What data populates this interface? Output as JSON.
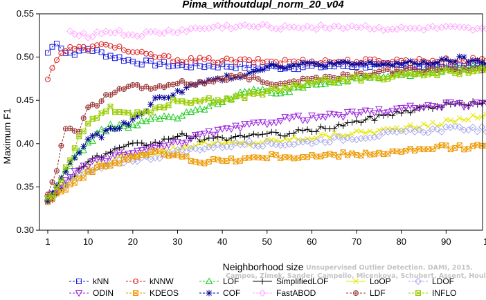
{
  "chart_data": {
    "type": "line",
    "title": "Pima_withoutdupl_norm_20_v04",
    "xlabel": "Neighborhood size",
    "ylabel": "Maximum F1",
    "xlim": [
      1,
      100
    ],
    "ylim": [
      0.3,
      0.55
    ],
    "x_ticks": [
      1,
      10,
      20,
      30,
      40,
      50,
      60,
      70,
      80,
      90,
      100
    ],
    "y_ticks": [
      "0.30",
      "0.35",
      "0.40",
      "0.45",
      "0.50",
      "0.55"
    ],
    "grid": false,
    "legend_position": "bottom",
    "watermark_lines": [
      "Unsupervised Outlier Detection. DAMI, 2015.",
      "Campos, Zimek, Sander, Campello, Micenkova, Schubert, Assent, Houle"
    ],
    "series": [
      {
        "name": "kNN",
        "color": "#2222dd",
        "marker": "square",
        "dash": "3,2",
        "anchors": [
          [
            1,
            0.505
          ],
          [
            3,
            0.518
          ],
          [
            5,
            0.505
          ],
          [
            8,
            0.505
          ],
          [
            10,
            0.51
          ],
          [
            14,
            0.503
          ],
          [
            20,
            0.495
          ],
          [
            30,
            0.49
          ],
          [
            40,
            0.49
          ],
          [
            50,
            0.488
          ],
          [
            60,
            0.489
          ],
          [
            70,
            0.49
          ],
          [
            80,
            0.49
          ],
          [
            90,
            0.49
          ],
          [
            100,
            0.49
          ]
        ]
      },
      {
        "name": "kNNW",
        "color": "#dd2222",
        "marker": "circle",
        "dash": "3,2",
        "anchors": [
          [
            1,
            0.473
          ],
          [
            2,
            0.49
          ],
          [
            4,
            0.505
          ],
          [
            6,
            0.51
          ],
          [
            10,
            0.51
          ],
          [
            15,
            0.515
          ],
          [
            20,
            0.505
          ],
          [
            30,
            0.497
          ],
          [
            40,
            0.496
          ],
          [
            50,
            0.495
          ],
          [
            60,
            0.495
          ],
          [
            70,
            0.495
          ],
          [
            80,
            0.496
          ],
          [
            90,
            0.496
          ],
          [
            100,
            0.497
          ]
        ]
      },
      {
        "name": "LOF",
        "color": "#22cc22",
        "marker": "triangle",
        "dash": "3,2",
        "anchors": [
          [
            1,
            0.335
          ],
          [
            3,
            0.345
          ],
          [
            5,
            0.37
          ],
          [
            8,
            0.39
          ],
          [
            12,
            0.41
          ],
          [
            15,
            0.42
          ],
          [
            20,
            0.42
          ],
          [
            25,
            0.43
          ],
          [
            30,
            0.43
          ],
          [
            35,
            0.44
          ],
          [
            40,
            0.45
          ],
          [
            45,
            0.46
          ],
          [
            50,
            0.46
          ],
          [
            55,
            0.46
          ],
          [
            60,
            0.47
          ],
          [
            70,
            0.475
          ],
          [
            80,
            0.48
          ],
          [
            90,
            0.485
          ],
          [
            100,
            0.49
          ]
        ]
      },
      {
        "name": "SimplifiedLOF",
        "color": "#000000",
        "marker": "plus",
        "dash": "",
        "anchors": [
          [
            1,
            0.335
          ],
          [
            3,
            0.34
          ],
          [
            6,
            0.36
          ],
          [
            10,
            0.38
          ],
          [
            15,
            0.39
          ],
          [
            20,
            0.398
          ],
          [
            25,
            0.4
          ],
          [
            30,
            0.41
          ],
          [
            35,
            0.405
          ],
          [
            40,
            0.405
          ],
          [
            45,
            0.41
          ],
          [
            50,
            0.41
          ],
          [
            55,
            0.412
          ],
          [
            60,
            0.415
          ],
          [
            70,
            0.425
          ],
          [
            80,
            0.437
          ],
          [
            90,
            0.445
          ],
          [
            100,
            0.448
          ]
        ]
      },
      {
        "name": "LoOP",
        "color": "#e6e600",
        "marker": "x",
        "dash": "",
        "anchors": [
          [
            1,
            0.335
          ],
          [
            4,
            0.35
          ],
          [
            8,
            0.365
          ],
          [
            12,
            0.375
          ],
          [
            18,
            0.385
          ],
          [
            25,
            0.39
          ],
          [
            35,
            0.4
          ],
          [
            45,
            0.4
          ],
          [
            55,
            0.405
          ],
          [
            65,
            0.41
          ],
          [
            75,
            0.415
          ],
          [
            85,
            0.42
          ],
          [
            95,
            0.43
          ],
          [
            100,
            0.435
          ]
        ]
      },
      {
        "name": "LDOF",
        "color": "#aaaaee",
        "marker": "diamond",
        "dash": "3,2",
        "anchors": [
          [
            1,
            0.333
          ],
          [
            4,
            0.35
          ],
          [
            8,
            0.365
          ],
          [
            12,
            0.37
          ],
          [
            18,
            0.38
          ],
          [
            25,
            0.385
          ],
          [
            35,
            0.395
          ],
          [
            45,
            0.4
          ],
          [
            55,
            0.4
          ],
          [
            65,
            0.405
          ],
          [
            75,
            0.41
          ],
          [
            85,
            0.415
          ],
          [
            95,
            0.418
          ],
          [
            100,
            0.415
          ]
        ]
      },
      {
        "name": "ODIN",
        "color": "#9922dd",
        "marker": "triangle-down",
        "dash": "3,2",
        "anchors": [
          [
            1,
            0.335
          ],
          [
            5,
            0.36
          ],
          [
            10,
            0.375
          ],
          [
            15,
            0.385
          ],
          [
            20,
            0.39
          ],
          [
            25,
            0.395
          ],
          [
            30,
            0.4
          ],
          [
            35,
            0.41
          ],
          [
            40,
            0.415
          ],
          [
            45,
            0.42
          ],
          [
            50,
            0.425
          ],
          [
            55,
            0.43
          ],
          [
            60,
            0.43
          ],
          [
            70,
            0.435
          ],
          [
            80,
            0.44
          ],
          [
            90,
            0.445
          ],
          [
            100,
            0.445
          ]
        ]
      },
      {
        "name": "KDEOS",
        "color": "#ee9900",
        "marker": "square-x",
        "dash": "3,2",
        "anchors": [
          [
            1,
            0.335
          ],
          [
            4,
            0.345
          ],
          [
            8,
            0.36
          ],
          [
            12,
            0.37
          ],
          [
            16,
            0.378
          ],
          [
            20,
            0.385
          ],
          [
            25,
            0.39
          ],
          [
            30,
            0.385
          ],
          [
            35,
            0.38
          ],
          [
            40,
            0.38
          ],
          [
            50,
            0.385
          ],
          [
            60,
            0.385
          ],
          [
            70,
            0.388
          ],
          [
            80,
            0.39
          ],
          [
            88,
            0.395
          ],
          [
            100,
            0.397
          ]
        ]
      },
      {
        "name": "COF",
        "color": "#000099",
        "marker": "star",
        "dash": "3,2",
        "anchors": [
          [
            1,
            0.335
          ],
          [
            3,
            0.35
          ],
          [
            5,
            0.37
          ],
          [
            8,
            0.39
          ],
          [
            10,
            0.405
          ],
          [
            13,
            0.41
          ],
          [
            17,
            0.42
          ],
          [
            21,
            0.43
          ],
          [
            25,
            0.45
          ],
          [
            30,
            0.46
          ],
          [
            35,
            0.47
          ],
          [
            40,
            0.475
          ],
          [
            45,
            0.48
          ],
          [
            50,
            0.49
          ],
          [
            55,
            0.49
          ],
          [
            60,
            0.492
          ],
          [
            70,
            0.492
          ],
          [
            80,
            0.492
          ],
          [
            90,
            0.495
          ],
          [
            93,
            0.498
          ],
          [
            100,
            0.492
          ]
        ]
      },
      {
        "name": "FastABOD",
        "color": "#ffaaff",
        "marker": "diamond",
        "dash": "3,2",
        "anchors": [
          [
            6,
            0.53
          ],
          [
            10,
            0.525
          ],
          [
            15,
            0.53
          ],
          [
            20,
            0.525
          ],
          [
            30,
            0.53
          ],
          [
            40,
            0.535
          ],
          [
            50,
            0.535
          ],
          [
            60,
            0.535
          ],
          [
            70,
            0.535
          ],
          [
            80,
            0.532
          ],
          [
            90,
            0.533
          ],
          [
            100,
            0.53
          ]
        ]
      },
      {
        "name": "LDF",
        "color": "#993333",
        "marker": "circle-plus",
        "dash": "3,2",
        "anchors": [
          [
            1,
            0.34
          ],
          [
            3,
            0.37
          ],
          [
            5,
            0.42
          ],
          [
            8,
            0.415
          ],
          [
            10,
            0.44
          ],
          [
            13,
            0.45
          ],
          [
            17,
            0.465
          ],
          [
            20,
            0.465
          ],
          [
            25,
            0.465
          ],
          [
            30,
            0.47
          ],
          [
            35,
            0.47
          ],
          [
            40,
            0.475
          ],
          [
            45,
            0.478
          ],
          [
            50,
            0.47
          ],
          [
            55,
            0.472
          ],
          [
            60,
            0.475
          ],
          [
            70,
            0.48
          ],
          [
            80,
            0.485
          ],
          [
            90,
            0.485
          ],
          [
            100,
            0.487
          ]
        ]
      },
      {
        "name": "INFLO",
        "color": "#99cc00",
        "marker": "square-star",
        "dash": "3,2",
        "anchors": [
          [
            1,
            0.335
          ],
          [
            3,
            0.35
          ],
          [
            6,
            0.38
          ],
          [
            8,
            0.41
          ],
          [
            11,
            0.43
          ],
          [
            15,
            0.44
          ],
          [
            20,
            0.435
          ],
          [
            25,
            0.44
          ],
          [
            30,
            0.45
          ],
          [
            35,
            0.45
          ],
          [
            40,
            0.45
          ],
          [
            45,
            0.455
          ],
          [
            50,
            0.46
          ],
          [
            55,
            0.465
          ],
          [
            60,
            0.47
          ],
          [
            70,
            0.475
          ],
          [
            80,
            0.478
          ],
          [
            90,
            0.482
          ],
          [
            100,
            0.485
          ]
        ]
      }
    ]
  }
}
